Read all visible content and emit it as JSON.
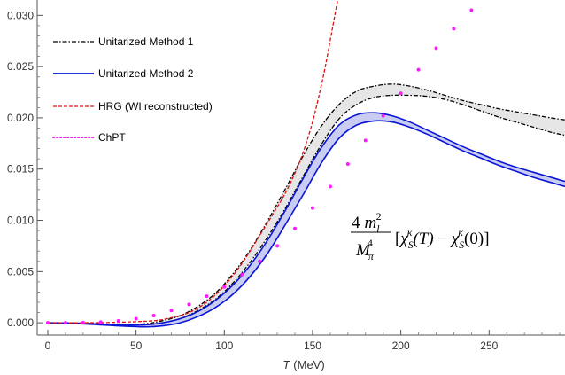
{
  "chart_data": {
    "type": "line",
    "xlabel": "(MeV)",
    "xlabel_var": "T",
    "xlim": [
      -6,
      293
    ],
    "ylim": [
      -0.0012,
      0.0315
    ],
    "xticks": [
      0,
      50,
      100,
      150,
      200,
      250
    ],
    "yticks": [
      0.0,
      0.005,
      0.01,
      0.015,
      0.02,
      0.025,
      0.03
    ],
    "ytick_labels": [
      "0.000",
      "0.005",
      "0.010",
      "0.015",
      "0.020",
      "0.025",
      "0.030"
    ],
    "legend_position": "top-left",
    "colors": {
      "method1": "#000000",
      "method2": "#0a14d6",
      "hrg": "#e01010",
      "chpt": "#ff19ff",
      "band": "#e6e6e6",
      "band2": "#c9cdf2"
    },
    "annotation": {
      "prefix_num": "4",
      "m": "m",
      "m_sub": "l",
      "m_sup": "2",
      "den": "M",
      "den_sub": "π",
      "den_sup": "4",
      "open": "[",
      "chi": "χ",
      "chi_sub": "S",
      "chi_sup": "κ",
      "arg1": "(T)",
      "minus": " − ",
      "arg2": "(0)",
      "close": "]"
    },
    "series": [
      {
        "name": "Unitarized Method 1",
        "style": "dashdot",
        "band": true,
        "x": [
          0,
          20,
          40,
          55,
          65,
          75,
          85,
          95,
          105,
          115,
          125,
          135,
          145,
          155,
          165,
          175,
          185,
          195,
          205,
          215,
          225,
          235,
          245,
          255,
          265,
          275,
          285,
          293
        ],
        "upper": [
          0,
          -5e-05,
          -0.0002,
          -0.0001,
          0.0002,
          0.0007,
          0.0016,
          0.0029,
          0.0048,
          0.0072,
          0.0101,
          0.0132,
          0.0164,
          0.0192,
          0.0213,
          0.0226,
          0.0231,
          0.0233,
          0.0231,
          0.0227,
          0.0222,
          0.0217,
          0.0213,
          0.0209,
          0.0206,
          0.0203,
          0.02,
          0.0198
        ],
        "lower": [
          0,
          -5e-05,
          -0.0002,
          -0.0002,
          0.0,
          0.0004,
          0.0012,
          0.0023,
          0.0039,
          0.006,
          0.0085,
          0.0113,
          0.0144,
          0.0174,
          0.0199,
          0.0213,
          0.022,
          0.0222,
          0.0222,
          0.0221,
          0.0218,
          0.0213,
          0.0207,
          0.0201,
          0.0196,
          0.0191,
          0.0186,
          0.0183
        ]
      },
      {
        "name": "Unitarized Method 2",
        "style": "solid",
        "band": true,
        "x": [
          0,
          20,
          40,
          55,
          65,
          75,
          85,
          95,
          105,
          115,
          125,
          135,
          145,
          155,
          165,
          175,
          185,
          195,
          205,
          215,
          225,
          235,
          245,
          255,
          265,
          275,
          285,
          293
        ],
        "upper": [
          0,
          -5e-05,
          -0.0002,
          -0.0002,
          0.0,
          0.0004,
          0.0011,
          0.0022,
          0.0037,
          0.0057,
          0.0082,
          0.0111,
          0.0142,
          0.0171,
          0.0193,
          0.0203,
          0.0205,
          0.0202,
          0.0196,
          0.0188,
          0.018,
          0.0172,
          0.0165,
          0.0158,
          0.0152,
          0.0147,
          0.0142,
          0.0138
        ],
        "lower": [
          0,
          -0.0001,
          -0.0003,
          -0.0004,
          -0.0003,
          0.0,
          0.0006,
          0.0015,
          0.0028,
          0.0046,
          0.0069,
          0.0097,
          0.0126,
          0.0156,
          0.018,
          0.0193,
          0.0197,
          0.0196,
          0.0191,
          0.0184,
          0.0176,
          0.0168,
          0.0161,
          0.0154,
          0.0148,
          0.0142,
          0.0137,
          0.0133
        ]
      },
      {
        "name": "HRG (WI reconstructed)",
        "style": "dashed",
        "x": [
          0,
          20,
          40,
          60,
          70,
          80,
          90,
          100,
          110,
          120,
          130,
          135,
          140,
          145,
          150,
          155,
          158,
          161,
          164,
          166
        ],
        "y": [
          0,
          0,
          5e-05,
          0.0002,
          0.0005,
          0.001,
          0.002,
          0.0036,
          0.0058,
          0.0085,
          0.0113,
          0.0128,
          0.0146,
          0.0168,
          0.0196,
          0.0232,
          0.0257,
          0.0285,
          0.0313,
          0.033
        ]
      },
      {
        "name": "ChPT",
        "style": "dotted",
        "x": [
          0,
          10,
          20,
          30,
          40,
          50,
          60,
          70,
          80,
          90,
          100,
          110,
          120,
          130,
          140,
          150,
          160,
          170,
          180,
          190,
          200,
          210,
          220,
          230,
          240
        ],
        "y": [
          0,
          0,
          2e-05,
          7e-05,
          0.00018,
          0.0004,
          0.0007,
          0.0012,
          0.0018,
          0.0026,
          0.0035,
          0.0047,
          0.006,
          0.0075,
          0.0092,
          0.0112,
          0.0133,
          0.0155,
          0.0178,
          0.0202,
          0.0224,
          0.0247,
          0.0268,
          0.0287,
          0.0305
        ]
      }
    ]
  }
}
